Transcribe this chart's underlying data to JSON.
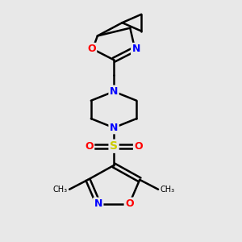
{
  "bg_color": "#e8e8e8",
  "bond_color": "#000000",
  "bond_width": 1.8,
  "atom_colors": {
    "N": "#0000ff",
    "O": "#ff0000",
    "S": "#cccc00",
    "C": "#000000"
  },
  "font_size_atoms": 9
}
